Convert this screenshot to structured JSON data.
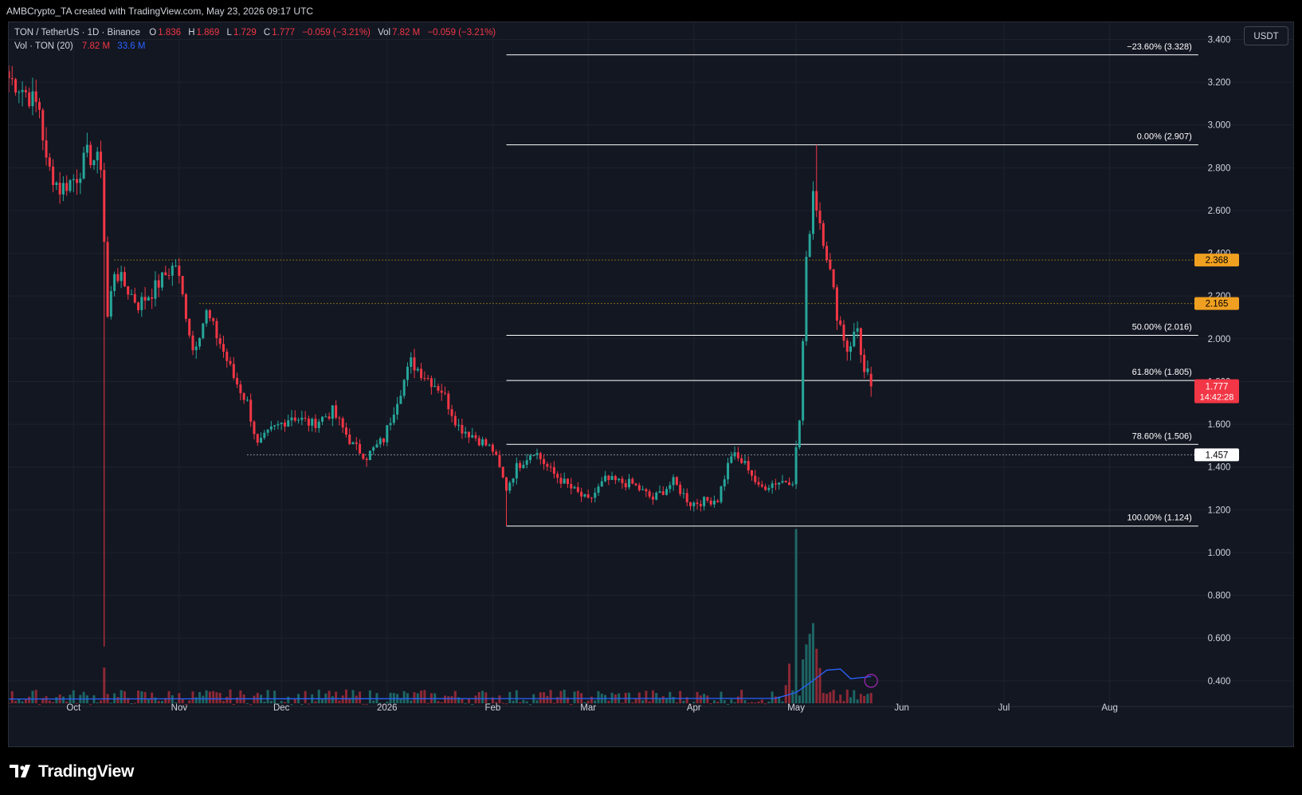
{
  "header": {
    "title": "AMBCrypto_TA created with TradingView.com, May 23, 2026 09:17 UTC"
  },
  "legend": {
    "symbol": "TON / TetherUS · 1D · Binance",
    "o_label": "O",
    "o_value": "1.836",
    "h_label": "H",
    "h_value": "1.869",
    "l_label": "L",
    "l_value": "1.729",
    "c_label": "C",
    "c_value": "1.777",
    "change": "−0.059 (−3.21%)",
    "vol_label": "Vol",
    "vol_value": "7.82 M",
    "vol_change": "−0.059 (−3.21%)"
  },
  "volume_legend": {
    "label": "Vol · TON (20)",
    "value": "7.82 M",
    "ma_value": "33.6 M"
  },
  "currency": "USDT",
  "footer": {
    "brand": "TradingView"
  },
  "colors": {
    "background": "#131722",
    "up": "#26a69a",
    "down": "#f23645",
    "fib": "#ffffff",
    "horizontal_line": "#ffffff",
    "resistance_line": "#f0b90b",
    "volume_ma": "#2962ff",
    "grid": "#1e222d",
    "axis_text": "#d1d4dc",
    "last_price_label": "#f23645",
    "resistance_label": "#f0a020"
  },
  "chart_data": {
    "type": "candlestick",
    "title": "",
    "xlabel": "",
    "ylabel": "",
    "x_ticks": [
      "Oct",
      "Nov",
      "Dec",
      "2026",
      "Feb",
      "Mar",
      "Apr",
      "May",
      "Jun",
      "Jul",
      "Aug"
    ],
    "x_tick_dates": [
      "2025-10-01",
      "2025-11-01",
      "2025-12-01",
      "2026-01-01",
      "2026-02-01",
      "2026-03-01",
      "2026-04-01",
      "2026-05-01",
      "2026-06-01",
      "2026-07-01",
      "2026-08-01"
    ],
    "x_range": [
      "2025-09-12",
      "2026-08-24"
    ],
    "y_ticks": [
      "3.400",
      "3.200",
      "3.000",
      "2.800",
      "2.600",
      "2.400",
      "2.200",
      "2.000",
      "1.800",
      "1.600",
      "1.400",
      "1.200",
      "1.000",
      "0.800",
      "0.600",
      "0.400"
    ],
    "y_range": [
      0.28,
      3.48
    ],
    "grid": true,
    "anchors": [
      {
        "date": "2025-09-12",
        "price": 3.22
      },
      {
        "date": "2025-09-16",
        "price": 3.17
      },
      {
        "date": "2025-09-21",
        "price": 3.08
      },
      {
        "date": "2025-09-23",
        "price": 2.82
      },
      {
        "date": "2025-09-27",
        "price": 2.7
      },
      {
        "date": "2025-10-02",
        "price": 2.76
      },
      {
        "date": "2025-10-05",
        "price": 2.86
      },
      {
        "date": "2025-10-09",
        "price": 2.82
      },
      {
        "date": "2025-10-11",
        "price": 2.1
      },
      {
        "date": "2025-10-13",
        "price": 2.32
      },
      {
        "date": "2025-10-16",
        "price": 2.25
      },
      {
        "date": "2025-10-20",
        "price": 2.16
      },
      {
        "date": "2025-10-24",
        "price": 2.22
      },
      {
        "date": "2025-10-28",
        "price": 2.3
      },
      {
        "date": "2025-10-31",
        "price": 2.35
      },
      {
        "date": "2025-11-03",
        "price": 2.12
      },
      {
        "date": "2025-11-05",
        "price": 1.95
      },
      {
        "date": "2025-11-09",
        "price": 2.12
      },
      {
        "date": "2025-11-13",
        "price": 1.98
      },
      {
        "date": "2025-11-17",
        "price": 1.82
      },
      {
        "date": "2025-11-21",
        "price": 1.7
      },
      {
        "date": "2025-11-24",
        "price": 1.5
      },
      {
        "date": "2025-11-28",
        "price": 1.57
      },
      {
        "date": "2025-12-04",
        "price": 1.64
      },
      {
        "date": "2025-12-10",
        "price": 1.6
      },
      {
        "date": "2025-12-16",
        "price": 1.66
      },
      {
        "date": "2025-12-22",
        "price": 1.5
      },
      {
        "date": "2025-12-26",
        "price": 1.45
      },
      {
        "date": "2025-12-31",
        "price": 1.53
      },
      {
        "date": "2026-01-04",
        "price": 1.72
      },
      {
        "date": "2026-01-08",
        "price": 1.89
      },
      {
        "date": "2026-01-12",
        "price": 1.83
      },
      {
        "date": "2026-01-17",
        "price": 1.76
      },
      {
        "date": "2026-01-22",
        "price": 1.59
      },
      {
        "date": "2026-01-27",
        "price": 1.54
      },
      {
        "date": "2026-02-01",
        "price": 1.48
      },
      {
        "date": "2026-02-05",
        "price": 1.3
      },
      {
        "date": "2026-02-08",
        "price": 1.4
      },
      {
        "date": "2026-02-13",
        "price": 1.48
      },
      {
        "date": "2026-02-18",
        "price": 1.38
      },
      {
        "date": "2026-02-24",
        "price": 1.3
      },
      {
        "date": "2026-03-01",
        "price": 1.24
      },
      {
        "date": "2026-03-06",
        "price": 1.34
      },
      {
        "date": "2026-03-14",
        "price": 1.32
      },
      {
        "date": "2026-03-20",
        "price": 1.25
      },
      {
        "date": "2026-03-26",
        "price": 1.33
      },
      {
        "date": "2026-03-31",
        "price": 1.23
      },
      {
        "date": "2026-04-08",
        "price": 1.25
      },
      {
        "date": "2026-04-12",
        "price": 1.46
      },
      {
        "date": "2026-04-17",
        "price": 1.4
      },
      {
        "date": "2026-04-20",
        "price": 1.3
      },
      {
        "date": "2026-04-25",
        "price": 1.33
      },
      {
        "date": "2026-04-30",
        "price": 1.34
      },
      {
        "date": "2026-05-02",
        "price": 1.62
      },
      {
        "date": "2026-05-04",
        "price": 2.35
      },
      {
        "date": "2026-05-06",
        "price": 2.7
      },
      {
        "date": "2026-05-10",
        "price": 2.4
      },
      {
        "date": "2026-05-13",
        "price": 2.12
      },
      {
        "date": "2026-05-16",
        "price": 1.95
      },
      {
        "date": "2026-05-19",
        "price": 2.05
      },
      {
        "date": "2026-05-21",
        "price": 1.836
      },
      {
        "date": "2026-05-22",
        "price": 1.836
      },
      {
        "date": "2026-05-23",
        "price": 1.777
      }
    ],
    "spikes": [
      {
        "date": "2025-10-10",
        "low": 0.56
      },
      {
        "date": "2026-05-07",
        "high": 2.907
      },
      {
        "date": "2026-02-05",
        "low": 1.124
      }
    ],
    "last_candle": {
      "date": "2026-05-23",
      "open": 1.836,
      "high": 1.869,
      "low": 1.729,
      "close": 1.777
    },
    "volume": {
      "base_max": 0.36,
      "spikes": [
        {
          "date": "2025-10-10",
          "top": 0.462
        },
        {
          "date": "2026-04-28",
          "top": 0.38
        },
        {
          "date": "2026-04-29",
          "top": 0.48
        },
        {
          "date": "2026-05-01",
          "top": 1.11
        },
        {
          "date": "2026-05-03",
          "top": 0.5
        },
        {
          "date": "2026-05-04",
          "top": 0.57
        },
        {
          "date": "2026-05-05",
          "top": 0.62
        },
        {
          "date": "2026-05-06",
          "top": 0.67
        },
        {
          "date": "2026-05-07",
          "top": 0.55
        },
        {
          "date": "2026-05-08",
          "top": 0.46
        }
      ],
      "ma": [
        {
          "date": "2025-09-12",
          "value": 0.315
        },
        {
          "date": "2026-04-25",
          "value": 0.318
        },
        {
          "date": "2026-05-01",
          "value": 0.345
        },
        {
          "date": "2026-05-05",
          "value": 0.39
        },
        {
          "date": "2026-05-10",
          "value": 0.45
        },
        {
          "date": "2026-05-14",
          "value": 0.455
        },
        {
          "date": "2026-05-17",
          "value": 0.41
        },
        {
          "date": "2026-05-23",
          "value": 0.42
        }
      ]
    },
    "fib_retracement": {
      "start_date": "2026-02-05",
      "end_date": "2026-08-27",
      "levels": [
        {
          "label": "−23.60% (3.328)",
          "price": 3.328
        },
        {
          "label": "0.00% (2.907)",
          "price": 2.907
        },
        {
          "label": "50.00% (2.016)",
          "price": 2.016
        },
        {
          "label": "61.80% (1.805)",
          "price": 1.805
        },
        {
          "label": "78.60% (1.506)",
          "price": 1.506
        },
        {
          "label": "100.00% (1.124)",
          "price": 1.124
        }
      ]
    },
    "horizontal_lines": [
      {
        "price": 2.368,
        "start_date": "2025-10-13",
        "label": "2.368",
        "style": "dotted",
        "color": "#f0b90b",
        "label_bg": "#f0a020"
      },
      {
        "price": 2.165,
        "start_date": "2025-11-07",
        "label": "2.165",
        "style": "dotted",
        "color": "#f0b90b",
        "label_bg": "#f0a020"
      },
      {
        "price": 1.457,
        "start_date": "2025-11-21",
        "label": "1.457",
        "style": "dotted",
        "color": "#ffffff",
        "label_bg": "#ffffff"
      }
    ],
    "last_price": {
      "value": "1.777",
      "countdown": "14:42:28"
    }
  }
}
